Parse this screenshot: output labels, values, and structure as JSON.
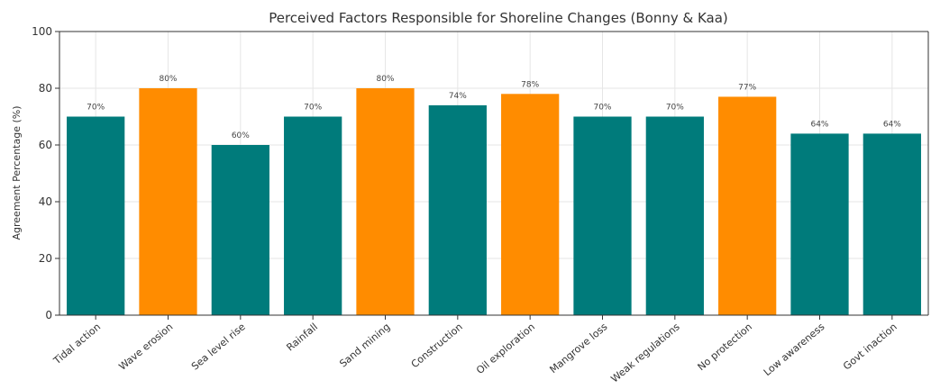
{
  "chart_data": {
    "type": "bar",
    "title": "Perceived Factors Responsible for Shoreline Changes (Bonny & Kaa)",
    "xlabel": "",
    "ylabel": "Agreement Percentage (%)",
    "ylim": [
      0,
      100
    ],
    "yticks": [
      0,
      20,
      40,
      60,
      80,
      100
    ],
    "grid": true,
    "categories": [
      "Tidal action",
      "Wave erosion",
      "Sea level rise",
      "Rainfall",
      "Sand mining",
      "Construction",
      "Oil exploration",
      "Mangrove loss",
      "Weak regulations",
      "No protection",
      "Low awareness",
      "Govt inaction"
    ],
    "values": [
      70,
      80,
      60,
      70,
      80,
      74,
      78,
      70,
      70,
      77,
      64,
      64
    ],
    "data_labels": [
      "70%",
      "80%",
      "60%",
      "70%",
      "80%",
      "74%",
      "78%",
      "70%",
      "70%",
      "77%",
      "64%",
      "64%"
    ],
    "bar_colors": [
      "#007b7b",
      "#ff8c00",
      "#007b7b",
      "#007b7b",
      "#ff8c00",
      "#007b7b",
      "#ff8c00",
      "#007b7b",
      "#007b7b",
      "#ff8c00",
      "#007b7b",
      "#007b7b"
    ],
    "grid_color": "#e6e6e6",
    "axis_color": "#333333"
  }
}
